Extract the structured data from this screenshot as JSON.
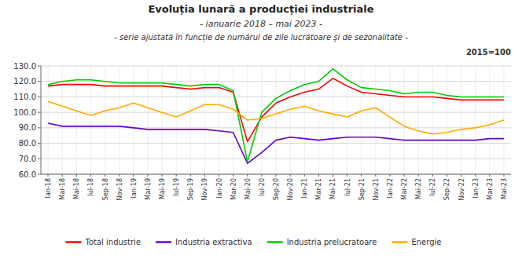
{
  "chart_data": {
    "type": "line",
    "title": "Evoluția lunară a producției industriale",
    "subtitle": "- ianuarie 2018 – mai 2023 -",
    "annotations": [
      "- serie ajustată în funcție de numărul de zile lucrătoare şi de sezonalitate -",
      "2015=100"
    ],
    "categories": [
      "Ian-18",
      "Mar-18",
      "Mai-18",
      "Iul-18",
      "Sep-18",
      "Nov-18",
      "Ian-19",
      "Mar-19",
      "Mai-19",
      "Iul-19",
      "Sep-19",
      "Nov-19",
      "Ian-20",
      "Mar-20",
      "Mai-20",
      "Iul-20",
      "Sep-20",
      "Nov-20",
      "Ian-21",
      "Mar-21",
      "Mai-21",
      "Iul-21",
      "Sep-21",
      "Nov-21",
      "Ian-22",
      "Mar-22",
      "Mai-22",
      "Iul-22",
      "Sep-22",
      "Nov-22",
      "Ian-23",
      "Mar-23",
      "Mai-23"
    ],
    "series": [
      {
        "name": "Total industrie",
        "color": "#FF0000",
        "values": [
          117,
          118,
          118,
          118,
          117,
          117,
          117,
          117,
          117,
          116,
          115,
          116,
          116,
          113,
          81,
          97,
          106,
          110,
          113,
          115,
          122,
          117,
          113,
          112,
          111,
          110,
          110,
          110,
          109,
          108,
          108,
          108,
          108
        ]
      },
      {
        "name": "Industria extractiva",
        "color": "#6600CC",
        "values": [
          93,
          91,
          91,
          91,
          91,
          91,
          90,
          89,
          89,
          89,
          89,
          89,
          88,
          87,
          67,
          74,
          82,
          84,
          83,
          82,
          83,
          84,
          84,
          84,
          83,
          82,
          82,
          82,
          82,
          82,
          82,
          83,
          83
        ]
      },
      {
        "name": "Industria prelucratoare",
        "color": "#00CC00",
        "values": [
          118,
          120,
          121,
          121,
          120,
          119,
          119,
          119,
          119,
          118,
          117,
          118,
          118,
          114,
          68,
          100,
          109,
          114,
          118,
          120,
          128,
          121,
          116,
          115,
          114,
          112,
          113,
          113,
          111,
          110,
          110,
          110,
          110
        ]
      },
      {
        "name": "Energie",
        "color": "#FFAA00",
        "values": [
          107,
          104,
          101,
          98,
          101,
          103,
          106,
          103,
          100,
          97,
          101,
          105,
          105,
          102,
          95,
          96,
          99,
          102,
          104,
          101,
          99,
          97,
          101,
          103,
          97,
          91,
          88,
          86,
          87,
          89,
          90,
          92,
          95
        ]
      }
    ],
    "ylim": [
      60,
      130
    ],
    "yticks": [
      {
        "value": 60,
        "label": "60.0"
      },
      {
        "value": 70,
        "label": "70.0"
      },
      {
        "value": 80,
        "label": "80.0"
      },
      {
        "value": 90,
        "label": "90.0"
      },
      {
        "value": 100,
        "label": "100.0"
      },
      {
        "value": 110,
        "label": "110.0"
      },
      {
        "value": 120,
        "label": "120.0"
      },
      {
        "value": 130,
        "label": "130.0"
      }
    ],
    "grid": true,
    "legend": "bottom"
  }
}
